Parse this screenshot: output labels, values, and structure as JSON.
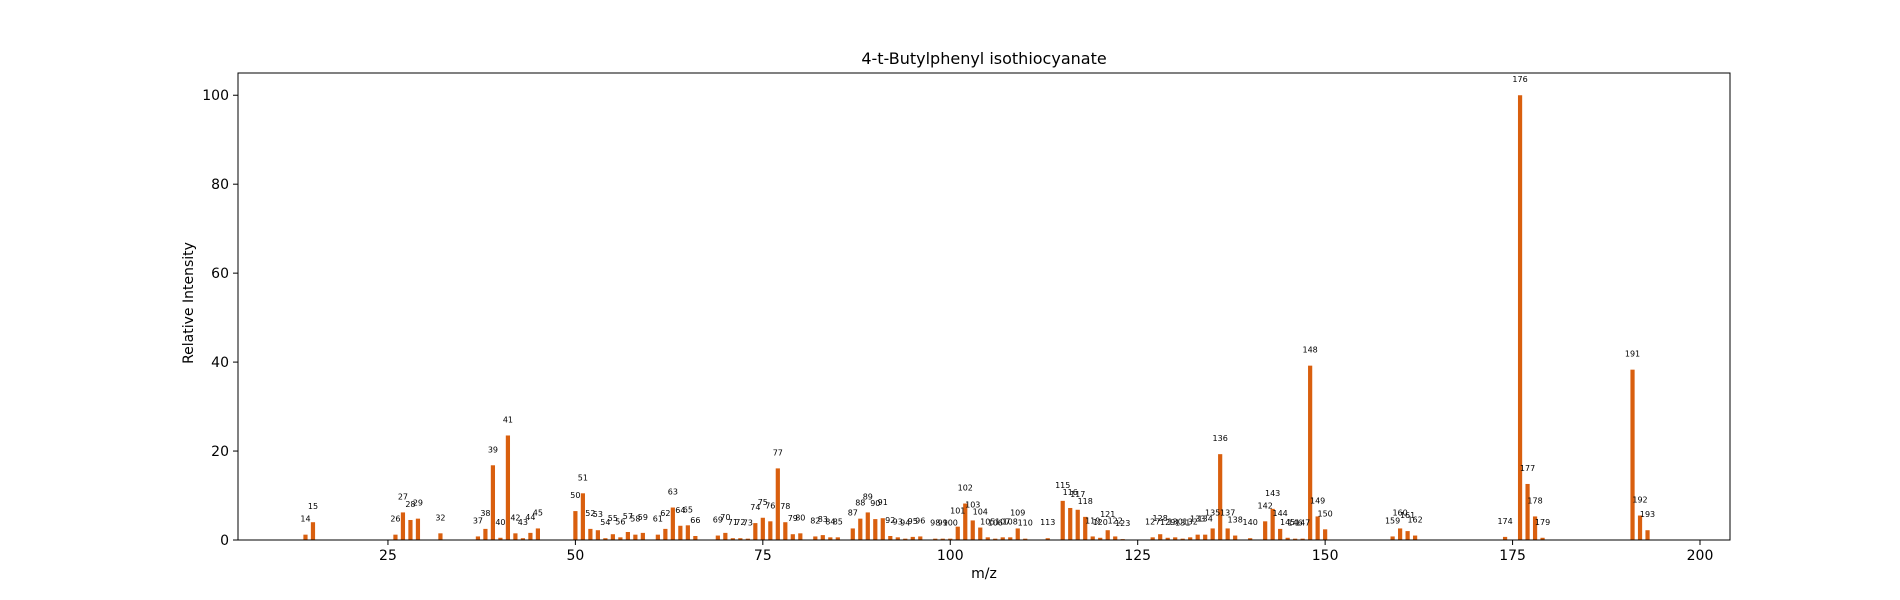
{
  "chart_data": {
    "type": "bar",
    "title": "4-t-Butylphenyl isothiocyanate",
    "xlabel": "m/z",
    "ylabel": "Relative Intensity",
    "xlim": [
      5,
      204
    ],
    "ylim": [
      0,
      105
    ],
    "xticks": [
      25,
      50,
      75,
      100,
      125,
      150,
      175,
      200
    ],
    "yticks": [
      0,
      20,
      40,
      60,
      80,
      100
    ],
    "grid": false,
    "legend": "none",
    "bar_color": "#d95f0e",
    "peaks": [
      {
        "mz": 14,
        "intensity": 1.2
      },
      {
        "mz": 15,
        "intensity": 4.0
      },
      {
        "mz": 26,
        "intensity": 1.2
      },
      {
        "mz": 27,
        "intensity": 6.2
      },
      {
        "mz": 28,
        "intensity": 4.5
      },
      {
        "mz": 29,
        "intensity": 4.8
      },
      {
        "mz": 32,
        "intensity": 1.5
      },
      {
        "mz": 37,
        "intensity": 0.8
      },
      {
        "mz": 38,
        "intensity": 2.5
      },
      {
        "mz": 39,
        "intensity": 16.8
      },
      {
        "mz": 40,
        "intensity": 0.5
      },
      {
        "mz": 41,
        "intensity": 23.5
      },
      {
        "mz": 42,
        "intensity": 1.5
      },
      {
        "mz": 43,
        "intensity": 0.4
      },
      {
        "mz": 44,
        "intensity": 1.6
      },
      {
        "mz": 45,
        "intensity": 2.6
      },
      {
        "mz": 50,
        "intensity": 6.5
      },
      {
        "mz": 51,
        "intensity": 10.5
      },
      {
        "mz": 52,
        "intensity": 2.5
      },
      {
        "mz": 53,
        "intensity": 2.2
      },
      {
        "mz": 54,
        "intensity": 0.4
      },
      {
        "mz": 55,
        "intensity": 1.3
      },
      {
        "mz": 56,
        "intensity": 0.6
      },
      {
        "mz": 57,
        "intensity": 1.8
      },
      {
        "mz": 58,
        "intensity": 1.2
      },
      {
        "mz": 59,
        "intensity": 1.6
      },
      {
        "mz": 61,
        "intensity": 1.2
      },
      {
        "mz": 62,
        "intensity": 2.5
      },
      {
        "mz": 63,
        "intensity": 7.3
      },
      {
        "mz": 64,
        "intensity": 3.2
      },
      {
        "mz": 65,
        "intensity": 3.3
      },
      {
        "mz": 66,
        "intensity": 0.9
      },
      {
        "mz": 69,
        "intensity": 1.0
      },
      {
        "mz": 70,
        "intensity": 1.6
      },
      {
        "mz": 71,
        "intensity": 0.4
      },
      {
        "mz": 72,
        "intensity": 0.4
      },
      {
        "mz": 73,
        "intensity": 0.3
      },
      {
        "mz": 74,
        "intensity": 3.8
      },
      {
        "mz": 75,
        "intensity": 5.0
      },
      {
        "mz": 76,
        "intensity": 4.2
      },
      {
        "mz": 77,
        "intensity": 16.1
      },
      {
        "mz": 78,
        "intensity": 4.0
      },
      {
        "mz": 79,
        "intensity": 1.3
      },
      {
        "mz": 80,
        "intensity": 1.5
      },
      {
        "mz": 82,
        "intensity": 0.8
      },
      {
        "mz": 83,
        "intensity": 1.1
      },
      {
        "mz": 84,
        "intensity": 0.6
      },
      {
        "mz": 85,
        "intensity": 0.6
      },
      {
        "mz": 87,
        "intensity": 2.6
      },
      {
        "mz": 88,
        "intensity": 4.8
      },
      {
        "mz": 89,
        "intensity": 6.2
      },
      {
        "mz": 90,
        "intensity": 4.7
      },
      {
        "mz": 91,
        "intensity": 4.9
      },
      {
        "mz": 92,
        "intensity": 0.9
      },
      {
        "mz": 93,
        "intensity": 0.6
      },
      {
        "mz": 94,
        "intensity": 0.3
      },
      {
        "mz": 95,
        "intensity": 0.7
      },
      {
        "mz": 96,
        "intensity": 0.8
      },
      {
        "mz": 98,
        "intensity": 0.3
      },
      {
        "mz": 99,
        "intensity": 0.3
      },
      {
        "mz": 100,
        "intensity": 0.3
      },
      {
        "mz": 101,
        "intensity": 3.0
      },
      {
        "mz": 102,
        "intensity": 8.2
      },
      {
        "mz": 103,
        "intensity": 4.4
      },
      {
        "mz": 104,
        "intensity": 2.8
      },
      {
        "mz": 105,
        "intensity": 0.6
      },
      {
        "mz": 106,
        "intensity": 0.3
      },
      {
        "mz": 107,
        "intensity": 0.6
      },
      {
        "mz": 108,
        "intensity": 0.6
      },
      {
        "mz": 109,
        "intensity": 2.6
      },
      {
        "mz": 110,
        "intensity": 0.3
      },
      {
        "mz": 113,
        "intensity": 0.4
      },
      {
        "mz": 115,
        "intensity": 8.8
      },
      {
        "mz": 116,
        "intensity": 7.2
      },
      {
        "mz": 117,
        "intensity": 6.8
      },
      {
        "mz": 118,
        "intensity": 5.2
      },
      {
        "mz": 119,
        "intensity": 0.8
      },
      {
        "mz": 120,
        "intensity": 0.5
      },
      {
        "mz": 121,
        "intensity": 2.2
      },
      {
        "mz": 122,
        "intensity": 0.8
      },
      {
        "mz": 123,
        "intensity": 0.2
      },
      {
        "mz": 127,
        "intensity": 0.6
      },
      {
        "mz": 128,
        "intensity": 1.3
      },
      {
        "mz": 129,
        "intensity": 0.5
      },
      {
        "mz": 130,
        "intensity": 0.6
      },
      {
        "mz": 131,
        "intensity": 0.3
      },
      {
        "mz": 132,
        "intensity": 0.6
      },
      {
        "mz": 133,
        "intensity": 1.2
      },
      {
        "mz": 134,
        "intensity": 1.2
      },
      {
        "mz": 135,
        "intensity": 2.6
      },
      {
        "mz": 136,
        "intensity": 19.3
      },
      {
        "mz": 137,
        "intensity": 2.6
      },
      {
        "mz": 138,
        "intensity": 1.0
      },
      {
        "mz": 140,
        "intensity": 0.4
      },
      {
        "mz": 142,
        "intensity": 4.2
      },
      {
        "mz": 143,
        "intensity": 7.0
      },
      {
        "mz": 144,
        "intensity": 2.5
      },
      {
        "mz": 145,
        "intensity": 0.5
      },
      {
        "mz": 146,
        "intensity": 0.3
      },
      {
        "mz": 147,
        "intensity": 0.3
      },
      {
        "mz": 148,
        "intensity": 39.2
      },
      {
        "mz": 149,
        "intensity": 5.3
      },
      {
        "mz": 150,
        "intensity": 2.4
      },
      {
        "mz": 159,
        "intensity": 0.8
      },
      {
        "mz": 160,
        "intensity": 2.6
      },
      {
        "mz": 161,
        "intensity": 2.0
      },
      {
        "mz": 162,
        "intensity": 1.0
      },
      {
        "mz": 174,
        "intensity": 0.7
      },
      {
        "mz": 176,
        "intensity": 100
      },
      {
        "mz": 177,
        "intensity": 12.6
      },
      {
        "mz": 178,
        "intensity": 5.3
      },
      {
        "mz": 179,
        "intensity": 0.5
      },
      {
        "mz": 191,
        "intensity": 38.3
      },
      {
        "mz": 192,
        "intensity": 5.5
      },
      {
        "mz": 193,
        "intensity": 2.2
      }
    ]
  }
}
